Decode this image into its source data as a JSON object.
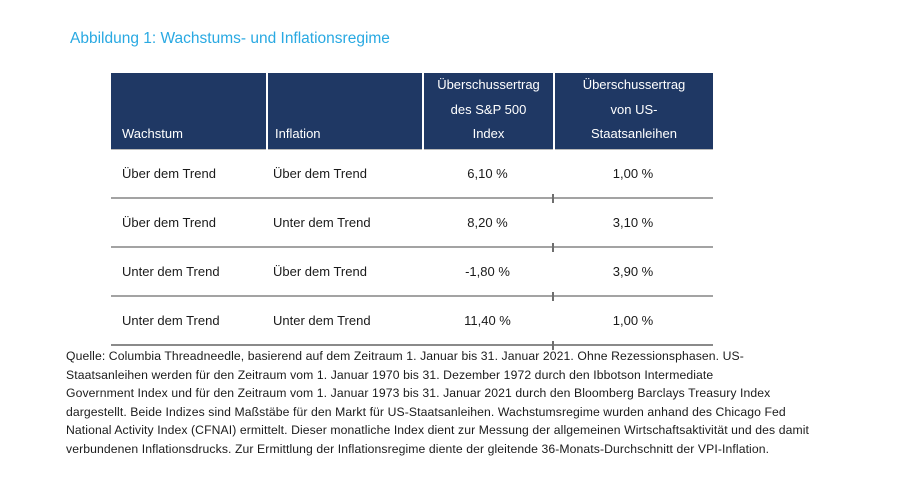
{
  "title": "Abbildung 1: Wachstums- und Inflationsregime",
  "colors": {
    "accent_title": "#29A9E2",
    "table_header_bg": "#1F3864",
    "row_separator": "#a3a3a3"
  },
  "table": {
    "columns": [
      {
        "label": "Wachstum"
      },
      {
        "label": "Inflation"
      },
      {
        "label": "Überschussertrag\ndes S&P 500\nIndex"
      },
      {
        "label": "Überschussertrag\nvon US-\nStaatsanleihen"
      }
    ],
    "rows": [
      [
        "Über dem Trend",
        "Über dem Trend",
        "6,10 %",
        "1,00 %"
      ],
      [
        "Über dem Trend",
        "Unter dem Trend",
        "8,20 %",
        "3,10 %"
      ],
      [
        "Unter dem Trend",
        "Über dem Trend",
        "-1,80 %",
        "3,90 %"
      ],
      [
        "Unter dem Trend",
        "Unter dem Trend",
        "11,40 %",
        "1,00 %"
      ]
    ]
  },
  "source_note": {
    "lines": [
      "Quelle: Columbia Threadneedle, basierend auf dem Zeitraum 1. Januar bis 31. Januar 2021. Ohne Rezessionsphasen. US-",
      "Staatsanleihen werden für den Zeitraum vom 1. Januar 1970 bis 31. Dezember 1972 durch den Ibbotson Intermediate",
      "Government Index und für den Zeitraum vom 1. Januar 1973 bis 31. Januar 2021 durch den Bloomberg Barclays Treasury Index",
      "dargestellt. Beide Indizes sind Maßstäbe für den Markt für US-Staatsanleihen. Wachstumsregime wurden anhand des Chicago Fed",
      "National Activity Index (CFNAI) ermittelt. Dieser monatliche Index dient zur Messung der allgemeinen Wirtschaftsaktivität und des damit",
      "verbundenen Inflationsdrucks. Zur Ermittlung der Inflationsregime diente der gleitende 36-Monats-Durchschnitt der VPI-Inflation."
    ]
  }
}
